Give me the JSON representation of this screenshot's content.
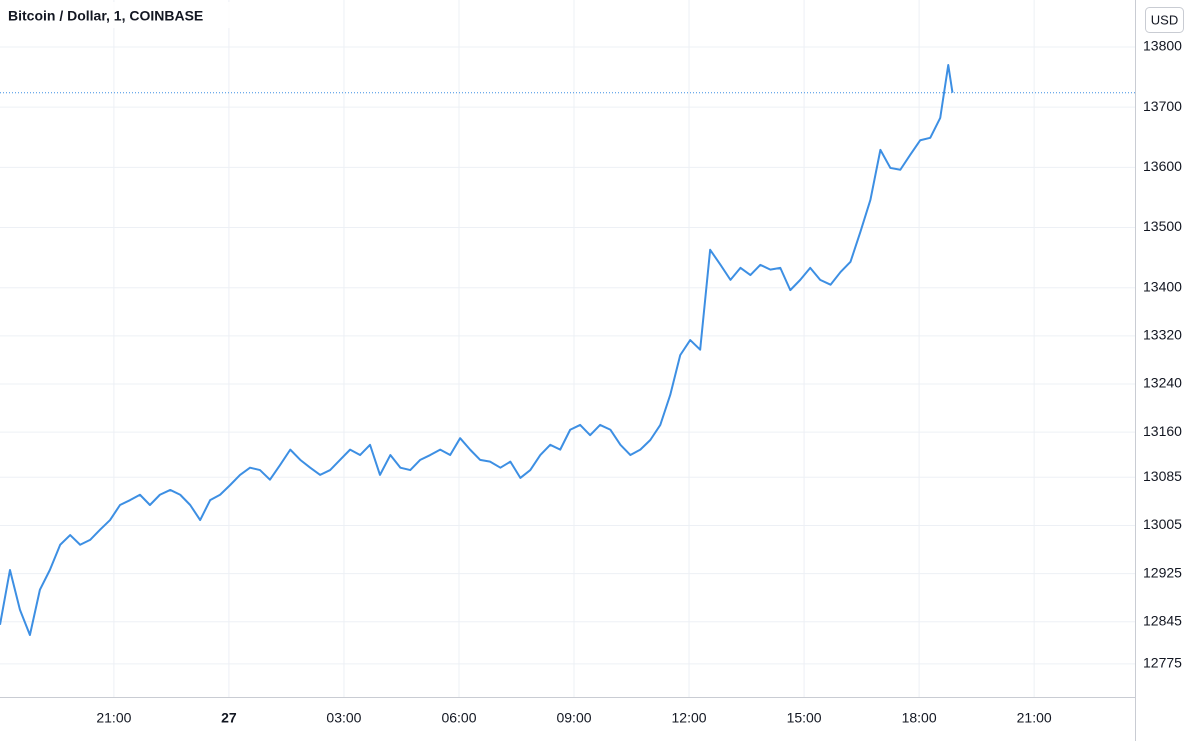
{
  "chart_data": {
    "type": "line",
    "title": "Bitcoin / Dollar, 1, COINBASE",
    "y_axis_label": "USD",
    "color": "#3d8fe3",
    "grid": true,
    "last_price_line": true,
    "x": [
      18.03,
      18.29,
      18.55,
      18.81,
      19.07,
      19.33,
      19.6,
      19.86,
      20.12,
      20.38,
      20.64,
      20.9,
      21.16,
      21.42,
      21.68,
      21.94,
      22.2,
      22.47,
      22.73,
      22.99,
      23.25,
      23.51,
      23.77,
      24.03,
      24.29,
      24.55,
      24.81,
      25.07,
      25.34,
      25.6,
      25.86,
      26.12,
      26.38,
      26.64,
      26.9,
      27.16,
      27.42,
      27.68,
      27.94,
      28.21,
      28.47,
      28.73,
      28.99,
      29.25,
      29.51,
      29.77,
      30.03,
      30.29,
      30.55,
      30.81,
      31.08,
      31.34,
      31.6,
      31.86,
      32.12,
      32.38,
      32.64,
      32.9,
      33.16,
      33.42,
      33.68,
      33.95,
      34.21,
      34.47,
      34.73,
      34.99,
      35.25,
      35.51,
      35.77,
      36.03,
      36.29,
      36.55,
      36.82,
      37.08,
      37.34,
      37.6,
      37.86,
      38.12,
      38.38,
      38.64,
      38.9,
      39.16,
      39.42,
      39.69,
      39.95,
      40.21,
      40.47,
      40.73,
      40.99,
      41.25,
      41.51,
      41.77,
      42.03,
      42.29,
      42.55,
      42.76,
      42.87
    ],
    "values": [
      12840,
      12931,
      12865,
      12823,
      12898,
      12931,
      12973,
      12989,
      12973,
      12981,
      12998,
      13014,
      13039,
      13047,
      13056,
      13039,
      13056,
      13064,
      13056,
      13039,
      13014,
      13047,
      13056,
      13072,
      13089,
      13101,
      13097,
      13081,
      13106,
      13131,
      13114,
      13101,
      13089,
      13097,
      13114,
      13131,
      13122,
      13139,
      13089,
      13122,
      13101,
      13097,
      13114,
      13122,
      13131,
      13122,
      13150,
      13131,
      13114,
      13111,
      13101,
      13111,
      13084,
      13097,
      13122,
      13139,
      13131,
      13164,
      13172,
      13155,
      13172,
      13164,
      13139,
      13122,
      13131,
      13147,
      13172,
      13222,
      13288,
      13313,
      13297,
      13463,
      13438,
      13413,
      13433,
      13421,
      13438,
      13430,
      13433,
      13396,
      13413,
      13433,
      13413,
      13405,
      13426,
      13443,
      13493,
      13546,
      13629,
      13599,
      13596,
      13621,
      13645,
      13649,
      13682,
      13770,
      13724
    ],
    "xlim": [
      18.03,
      47.63
    ],
    "xticks": [
      {
        "value": 21,
        "label": "21:00"
      },
      {
        "value": 24,
        "label": "27"
      },
      {
        "value": 27,
        "label": "03:00"
      },
      {
        "value": 30,
        "label": "06:00"
      },
      {
        "value": 33,
        "label": "09:00"
      },
      {
        "value": 36,
        "label": "12:00"
      },
      {
        "value": 39,
        "label": "15:00"
      },
      {
        "value": 42,
        "label": "18:00"
      },
      {
        "value": 45,
        "label": "21:00"
      }
    ],
    "ylim": [
      12720,
      13878
    ],
    "yticks": [
      12775,
      12845,
      12925,
      13005,
      13085,
      13160,
      13240,
      13320,
      13400,
      13500,
      13600,
      13700,
      13800
    ]
  }
}
